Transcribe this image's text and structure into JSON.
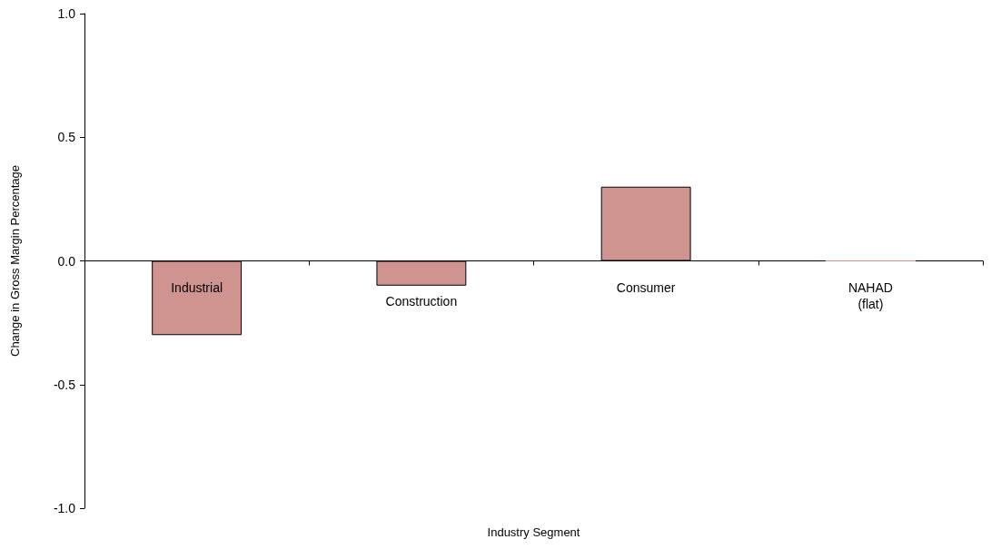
{
  "chart_data": {
    "type": "bar",
    "xlabel": "Industry Segment",
    "ylabel": "Change in Gross Margin Percentage",
    "categories": [
      "Industrial",
      "Construction",
      "Consumer",
      "NAHAD\n(flat)"
    ],
    "values": [
      -0.3,
      -0.1,
      0.3,
      0
    ],
    "color": "#d09490",
    "ylim": [
      -1,
      1
    ],
    "yticks": [
      {
        "value": -1,
        "label": "-1.0"
      },
      {
        "value": -0.5,
        "label": "-0.5"
      },
      {
        "value": 0,
        "label": "0.0"
      },
      {
        "value": 0.5,
        "label": "0.5"
      },
      {
        "value": 1,
        "label": "1.0"
      }
    ],
    "grid": false
  }
}
